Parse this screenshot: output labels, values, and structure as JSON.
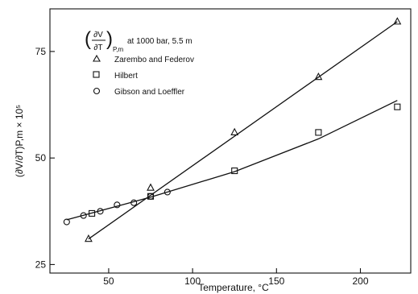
{
  "chart_data": {
    "type": "scatter",
    "xlabel": "Temperature, °C",
    "ylabel": "(∂V/∂T)P,m × 10⁵",
    "xlim": [
      15,
      230
    ],
    "ylim": [
      23,
      85
    ],
    "xticks": [
      50,
      100,
      150,
      200
    ],
    "yticks": [
      25,
      50,
      75
    ],
    "grid": false,
    "legend": {
      "header": {
        "numerator": "∂V",
        "denominator": "∂T",
        "subscript": "P,m",
        "condition": "at 1000 bar, 5.5 m"
      },
      "entries": [
        "Zarembo and Federov",
        "Hilbert",
        "Gibson and Loeffler"
      ]
    },
    "series": [
      {
        "name": "Zarembo and Federov",
        "marker": "triangle",
        "points": [
          [
            38,
            31
          ],
          [
            75,
            43
          ],
          [
            125,
            56
          ],
          [
            175,
            69
          ],
          [
            222,
            82
          ]
        ],
        "fit_line": [
          [
            38,
            31
          ],
          [
            222,
            82
          ]
        ]
      },
      {
        "name": "Hilbert",
        "marker": "square",
        "points": [
          [
            40,
            37
          ],
          [
            75,
            41
          ],
          [
            125,
            47
          ],
          [
            175,
            56
          ],
          [
            222,
            62
          ]
        ],
        "fit_line": [
          [
            25,
            35.5
          ],
          [
            75,
            40.8
          ],
          [
            125,
            46.8
          ],
          [
            175,
            54.5
          ],
          [
            222,
            63.5
          ]
        ]
      },
      {
        "name": "Gibson and Loeffler",
        "marker": "circle",
        "points": [
          [
            25,
            35
          ],
          [
            35,
            36.5
          ],
          [
            45,
            37.5
          ],
          [
            55,
            39
          ],
          [
            65,
            39.5
          ],
          [
            75,
            41
          ],
          [
            85,
            42
          ]
        ],
        "fit_line": []
      }
    ]
  }
}
